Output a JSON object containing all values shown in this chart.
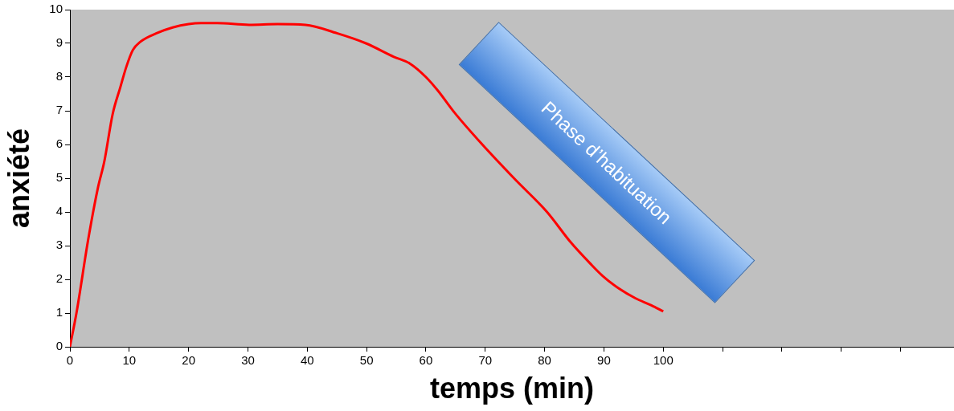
{
  "chart_data": {
    "type": "line",
    "xlabel": "temps (min)",
    "ylabel": "anxiété",
    "annotations": [
      "Phase d’habituation"
    ],
    "xlim": [
      0,
      149
    ],
    "xticks": [
      0,
      10,
      20,
      30,
      40,
      50,
      60,
      70,
      80,
      90,
      100,
      {
        "value": 110,
        "label": null
      },
      {
        "value": 120,
        "label": null
      },
      {
        "value": 130,
        "label": null
      },
      {
        "value": 140,
        "label": null
      }
    ],
    "ylim": [
      0,
      10
    ],
    "yticks": [
      0,
      1,
      2,
      3,
      4,
      5,
      6,
      7,
      8,
      9,
      10
    ],
    "grid": false,
    "legend": false,
    "marker": "none",
    "line_style": "solid",
    "series": [
      {
        "color": "#ff0000",
        "x": [
          0,
          1.1,
          3.1,
          4.7,
          5.8,
          7.2,
          8.5,
          9.5,
          10.6,
          11.9,
          14.6,
          17.3,
          20,
          22.1,
          24.8,
          30.2,
          35,
          39.7,
          45,
          49.9,
          54.6,
          57.3,
          60,
          62,
          64.8,
          69.5,
          75,
          80.4,
          84.4,
          87.8,
          89.8,
          92.5,
          95.3,
          98,
          100
        ],
        "values": [
          0,
          1,
          3.2,
          4.7,
          5.5,
          6.9,
          7.7,
          8.3,
          8.8,
          9.05,
          9.3,
          9.47,
          9.57,
          9.6,
          9.6,
          9.55,
          9.57,
          9.55,
          9.3,
          9,
          8.6,
          8.4,
          8,
          7.6,
          6.95,
          6,
          4.97,
          4,
          3.1,
          2.45,
          2.1,
          1.73,
          1.44,
          1.23,
          1.05
        ]
      }
    ]
  }
}
